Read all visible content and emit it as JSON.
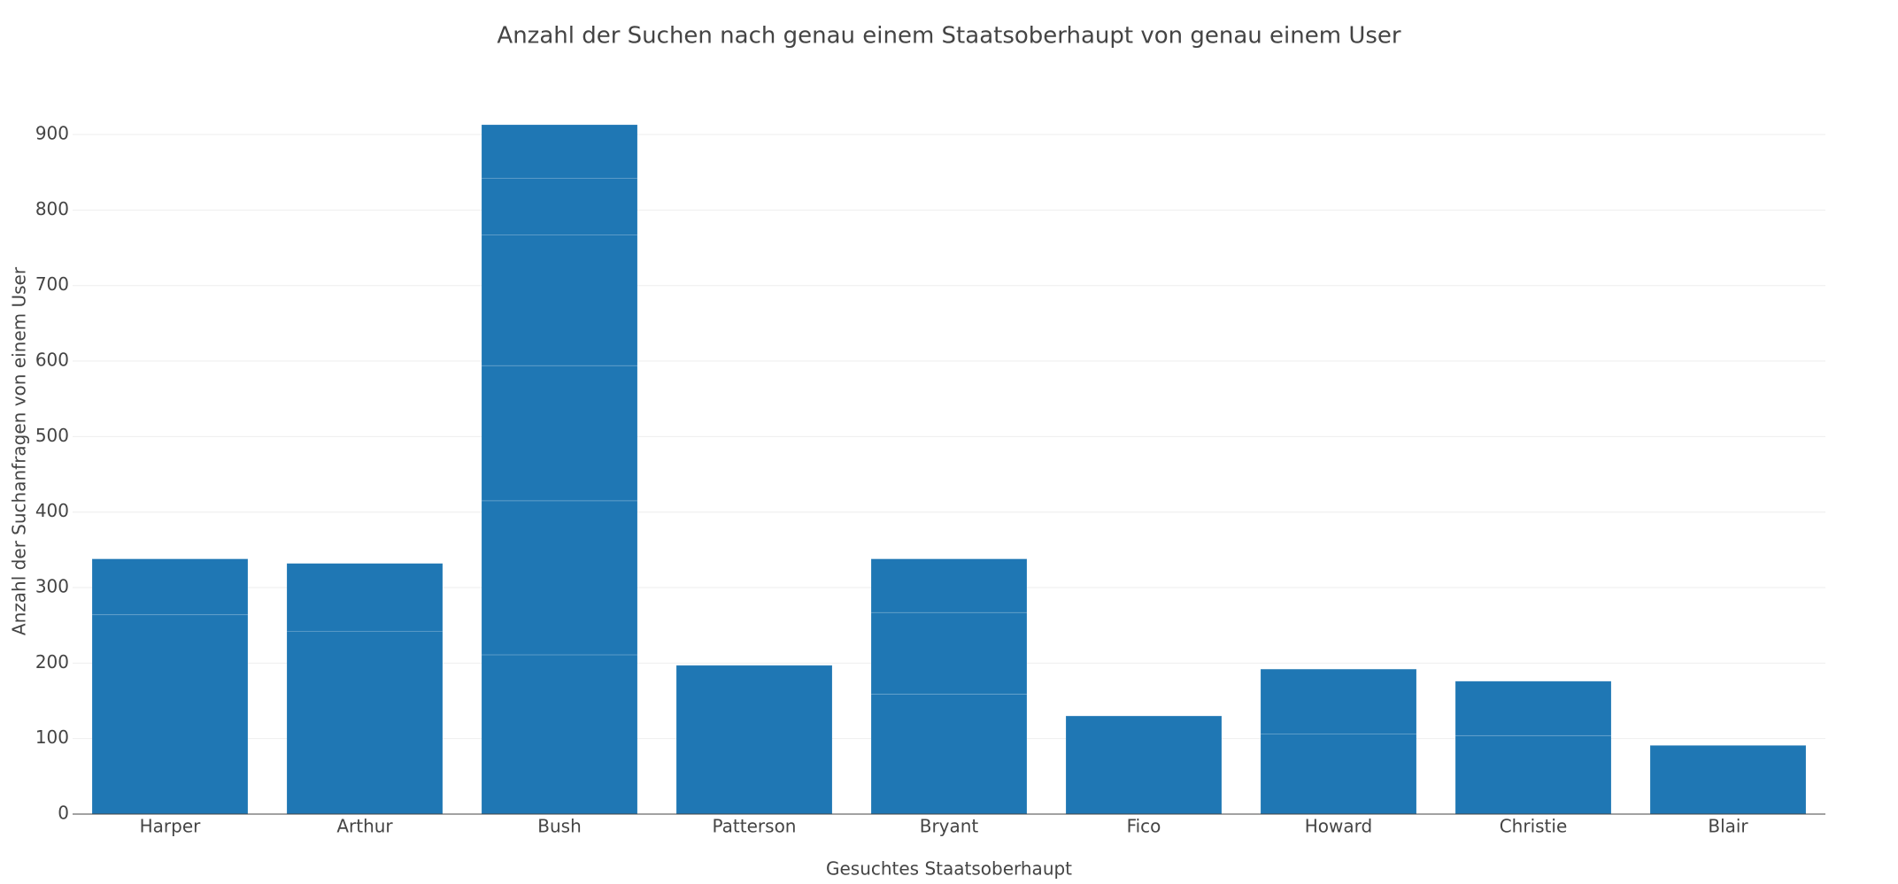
{
  "chart_data": {
    "type": "stacked-bar",
    "title": "Anzahl der Suchen nach genau einem Staatsoberhaupt von genau einem User",
    "x_label": "Gesuchtes Staatsoberhaupt",
    "y_label": "Anzahl der Suchanfragen von einem User",
    "categories": [
      "Harper",
      "Arthur",
      "Bush",
      "Patterson",
      "Bryant",
      "Fico",
      "Howard",
      "Christie",
      "Blair"
    ],
    "series": [
      {
        "color": "#1f77b4",
        "values": [
          264,
          242,
          211,
          197,
          159,
          130,
          106,
          104,
          91
        ]
      },
      {
        "color": "#1f77b4",
        "values": [
          74,
          90,
          204,
          null,
          108,
          null,
          86,
          72,
          null
        ]
      },
      {
        "color": "#1f77b4",
        "values": [
          null,
          null,
          179,
          null,
          71,
          null,
          null,
          null,
          null
        ]
      },
      {
        "color": "#1f77b4",
        "values": [
          null,
          null,
          173,
          null,
          null,
          null,
          null,
          null,
          null
        ]
      },
      {
        "color": "#1f77b4",
        "values": [
          null,
          null,
          75,
          null,
          null,
          null,
          null,
          null,
          null
        ]
      },
      {
        "color": "#1f77b4",
        "values": [
          null,
          null,
          71,
          null,
          null,
          null,
          null,
          null,
          null
        ]
      }
    ],
    "ylim": [
      0,
      961
    ],
    "yticks": [
      0,
      100,
      200,
      300,
      400,
      500,
      600,
      700,
      800,
      900
    ],
    "grid": true
  }
}
